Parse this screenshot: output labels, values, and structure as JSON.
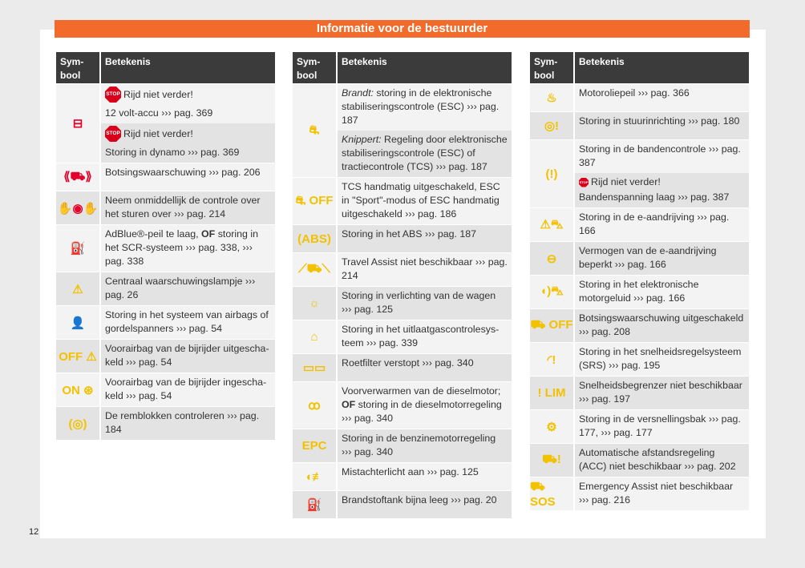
{
  "banner": "Informatie voor de bestuurder",
  "page_number": "12",
  "colors": {
    "red": "#e4002b",
    "yellow": "#f2c100",
    "orange": "#f26b2a"
  },
  "header": {
    "symbol": "Sym-\nbool",
    "meaning": "Betekenis"
  },
  "stop_label": "STOP",
  "columns": [
    {
      "rows": [
        {
          "icon": "battery-icon",
          "glyph": "⊟",
          "color": "red",
          "bg": "light",
          "subs": [
            {
              "stop": "Rijd niet verder!",
              "parts": [
                {
                  "t": "12 volt-accu ››› pag. 369"
                }
              ],
              "bg": "light"
            },
            {
              "stop": "Rijd niet verder!",
              "parts": [
                {
                  "t": "Storing in dynamo ››› pag. 369"
                }
              ],
              "bg": "gray"
            }
          ]
        },
        {
          "icon": "collision-warning-icon",
          "glyph": "⟪⛟⟫",
          "color": "red",
          "bg": "light",
          "subs": [
            {
              "parts": [
                {
                  "t": "Botsingswaarschuwing ››› pag. 206"
                }
              ],
              "bg": "light"
            }
          ]
        },
        {
          "icon": "hands-on-wheel-icon",
          "glyph": "✋◉✋",
          "color": "red",
          "bg": "gray",
          "subs": [
            {
              "parts": [
                {
                  "t": "Neem onmiddellijk de controle over het sturen over ››› pag. 214"
                }
              ],
              "bg": "gray"
            }
          ]
        },
        {
          "icon": "adblue-icon",
          "glyph": "⛽",
          "color": "red",
          "bg": "light",
          "subs": [
            {
              "parts": [
                {
                  "t": "AdBlue®-peil te laag, "
                },
                {
                  "t": "OF",
                  "s": "b"
                },
                {
                  "t": " storing in het SCR-systeem ››› pag. 338, ››› pag. 338"
                }
              ],
              "bg": "light"
            }
          ]
        },
        {
          "icon": "warning-triangle-icon",
          "glyph": "⚠",
          "color": "yellow",
          "bg": "gray",
          "subs": [
            {
              "parts": [
                {
                  "t": "Centraal waarschuwingslampje ››› pag. 26"
                }
              ],
              "bg": "gray"
            }
          ]
        },
        {
          "icon": "airbag-icon",
          "glyph": "👤",
          "color": "yellow",
          "bg": "light",
          "subs": [
            {
              "parts": [
                {
                  "t": "Storing in het systeem van airbags of gordelspanners ››› pag. 54"
                }
              ],
              "bg": "light"
            }
          ]
        },
        {
          "icon": "passenger-airbag-off-icon",
          "glyph": "OFF ⚠",
          "color": "yellow",
          "bg": "gray",
          "subs": [
            {
              "parts": [
                {
                  "t": "Voorairbag van de bijrijder uitgescha­keld ››› pag. 54"
                }
              ],
              "bg": "gray"
            }
          ]
        },
        {
          "icon": "passenger-airbag-on-icon",
          "glyph": "ON ⊛",
          "color": "yellow",
          "bg": "light",
          "subs": [
            {
              "parts": [
                {
                  "t": "Voorairbag van de bijrijder ingescha­keld ››› pag. 54"
                }
              ],
              "bg": "light"
            }
          ]
        },
        {
          "icon": "brake-pads-icon",
          "glyph": "(◎)",
          "color": "yellow",
          "bg": "gray",
          "subs": [
            {
              "parts": [
                {
                  "t": "De remblokken controleren ››› pag. 184"
                }
              ],
              "bg": "gray"
            }
          ]
        }
      ]
    },
    {
      "rows": [
        {
          "icon": "esc-icon",
          "glyph": "⛐",
          "color": "yellow",
          "bg": "light",
          "subs": [
            {
              "parts": [
                {
                  "t": "Brandt:",
                  "s": "i"
                },
                {
                  "t": " storing in de elektronische stabi­liseringscontrole (ESC) ››› pag. 187"
                }
              ],
              "bg": "light"
            },
            {
              "parts": [
                {
                  "t": "Knippert:",
                  "s": "i"
                },
                {
                  "t": " Regeling door elektronische stabiliseringscontrole (ESC) of tractie­controle (TCS) ››› pag. 187"
                }
              ],
              "bg": "gray"
            }
          ]
        },
        {
          "icon": "esc-off-icon",
          "glyph": "⛐ OFF",
          "color": "yellow",
          "bg": "light",
          "subs": [
            {
              "parts": [
                {
                  "t": "TCS handmatig uitgeschakeld, ESC in \"Sport\"-modus of ESC handmatig uitge­schakeld ››› pag. 186"
                }
              ],
              "bg": "light"
            }
          ]
        },
        {
          "icon": "abs-icon",
          "glyph": "(ABS)",
          "color": "yellow",
          "bg": "gray",
          "subs": [
            {
              "parts": [
                {
                  "t": "Storing in het ABS ››› pag. 187"
                }
              ],
              "bg": "gray"
            }
          ]
        },
        {
          "icon": "travel-assist-icon",
          "glyph": "⟋⛟⟍",
          "color": "yellow",
          "bg": "light",
          "subs": [
            {
              "parts": [
                {
                  "t": "Travel Assist niet beschikbaar ››› pag. 214"
                }
              ],
              "bg": "light"
            }
          ]
        },
        {
          "icon": "bulb-warning-icon",
          "glyph": "☼",
          "color": "yellow",
          "bg": "gray",
          "subs": [
            {
              "parts": [
                {
                  "t": "Storing in verlichting van de wagen ››› pag. 125"
                }
              ],
              "bg": "gray"
            }
          ]
        },
        {
          "icon": "engine-icon",
          "glyph": "⌂",
          "color": "yellow",
          "bg": "light",
          "subs": [
            {
              "parts": [
                {
                  "t": "Storing in het uitlaatgascontrolesys­teem ››› pag. 339"
                }
              ],
              "bg": "light"
            }
          ]
        },
        {
          "icon": "particle-filter-icon",
          "glyph": "▭▭",
          "color": "yellow",
          "bg": "gray",
          "subs": [
            {
              "parts": [
                {
                  "t": "Roetfilter verstopt ››› pag. 340"
                }
              ],
              "bg": "gray"
            }
          ]
        },
        {
          "icon": "glow-plug-icon",
          "glyph": "ꝏ",
          "color": "yellow",
          "bg": "light",
          "subs": [
            {
              "parts": [
                {
                  "t": "Voorverwarmen van de dieselmotor; "
                },
                {
                  "t": "OF",
                  "s": "b"
                },
                {
                  "t": " storing in de dieselmotorregeling ››› pag. 340"
                }
              ],
              "bg": "light"
            }
          ]
        },
        {
          "icon": "epc-icon",
          "glyph": "EPC",
          "color": "yellow",
          "bg": "gray",
          "subs": [
            {
              "parts": [
                {
                  "t": "Storing in de benzinemotorregeling ››› pag. 340"
                }
              ],
              "bg": "gray"
            }
          ]
        },
        {
          "icon": "rear-fog-light-icon",
          "glyph": "◖≢",
          "color": "yellow",
          "bg": "light",
          "subs": [
            {
              "parts": [
                {
                  "t": "Mistachterlicht aan ››› pag. 125"
                }
              ],
              "bg": "light"
            }
          ]
        },
        {
          "icon": "fuel-icon",
          "glyph": "⛽",
          "color": "yellow",
          "bg": "gray",
          "subs": [
            {
              "parts": [
                {
                  "t": "Brandstoftank bijna leeg ››› pag. 20"
                }
              ],
              "bg": "gray"
            }
          ]
        }
      ]
    },
    {
      "rows": [
        {
          "icon": "oil-level-icon",
          "glyph": "♨",
          "color": "yellow",
          "bg": "light",
          "subs": [
            {
              "parts": [
                {
                  "t": "Motoroliepeil ››› pag. 366"
                }
              ],
              "bg": "light"
            }
          ]
        },
        {
          "icon": "steering-warning-icon",
          "glyph": "◎!",
          "color": "yellow",
          "bg": "gray",
          "subs": [
            {
              "parts": [
                {
                  "t": "Storing in stuurinrichting ››› pag. 180"
                }
              ],
              "bg": "gray"
            }
          ]
        },
        {
          "icon": "tire-pressure-icon",
          "glyph": "(!)",
          "color": "yellow",
          "bg": "light",
          "subs": [
            {
              "parts": [
                {
                  "t": "Storing in de bandencontrole ››› pag. 387"
                }
              ],
              "bg": "light"
            },
            {
              "stop_small": "Rijd niet verder!",
              "parts": [
                {
                  "t": "Bandenspanning laag ››› pag. 387"
                }
              ],
              "bg": "gray"
            }
          ]
        },
        {
          "icon": "e-drive-icon",
          "glyph": "⚠⛍",
          "color": "yellow",
          "bg": "light",
          "subs": [
            {
              "parts": [
                {
                  "t": "Storing in de e-aandrijving ››› pag. 166"
                }
              ],
              "bg": "light"
            }
          ]
        },
        {
          "icon": "reduced-power-icon",
          "glyph": "⊖",
          "color": "yellow",
          "bg": "gray",
          "subs": [
            {
              "parts": [
                {
                  "t": "Vermogen van de e-aandrijving beperkt ››› pag. 166"
                }
              ],
              "bg": "gray"
            }
          ]
        },
        {
          "icon": "engine-sound-icon",
          "glyph": "◖)⛍",
          "color": "yellow",
          "bg": "light",
          "subs": [
            {
              "parts": [
                {
                  "t": "Storing in het elektronische motorgeluid ››› pag. 166"
                }
              ],
              "bg": "light"
            }
          ]
        },
        {
          "icon": "collision-warning-off-icon",
          "glyph": "⛟ OFF",
          "color": "yellow",
          "bg": "gray",
          "subs": [
            {
              "parts": [
                {
                  "t": "Botsingswaarschuwing uitgeschakeld ››› pag. 208"
                }
              ],
              "bg": "gray"
            }
          ]
        },
        {
          "icon": "speed-control-warning-icon",
          "glyph": "◜!",
          "color": "yellow",
          "bg": "light",
          "subs": [
            {
              "parts": [
                {
                  "t": "Storing in het snelheidsregelsysteem (SRS) ››› pag. 195"
                }
              ],
              "bg": "light"
            }
          ]
        },
        {
          "icon": "speed-limiter-icon",
          "glyph": "! LIM",
          "color": "yellow",
          "bg": "gray",
          "subs": [
            {
              "parts": [
                {
                  "t": "Snelheidsbegrenzer niet beschikbaar ››› pag. 197"
                }
              ],
              "bg": "gray"
            }
          ]
        },
        {
          "icon": "gearbox-icon",
          "glyph": "⚙",
          "color": "yellow",
          "bg": "light",
          "subs": [
            {
              "parts": [
                {
                  "t": "Storing in de versnellingsbak ››› pag. 177, ››› pag. 177"
                }
              ],
              "bg": "light"
            }
          ]
        },
        {
          "icon": "acc-warning-icon",
          "glyph": "⛟!",
          "color": "yellow",
          "bg": "gray",
          "subs": [
            {
              "parts": [
                {
                  "t": "Automatische afstandsregeling (ACC) niet beschikbaar ››› pag. 202"
                }
              ],
              "bg": "gray"
            }
          ]
        },
        {
          "icon": "emergency-assist-icon",
          "glyph": "⛟ SOS",
          "color": "yellow",
          "bg": "light",
          "subs": [
            {
              "parts": [
                {
                  "t": "Emergency Assist niet beschikbaar ››› pag. 216"
                }
              ],
              "bg": "light"
            }
          ]
        }
      ]
    }
  ]
}
